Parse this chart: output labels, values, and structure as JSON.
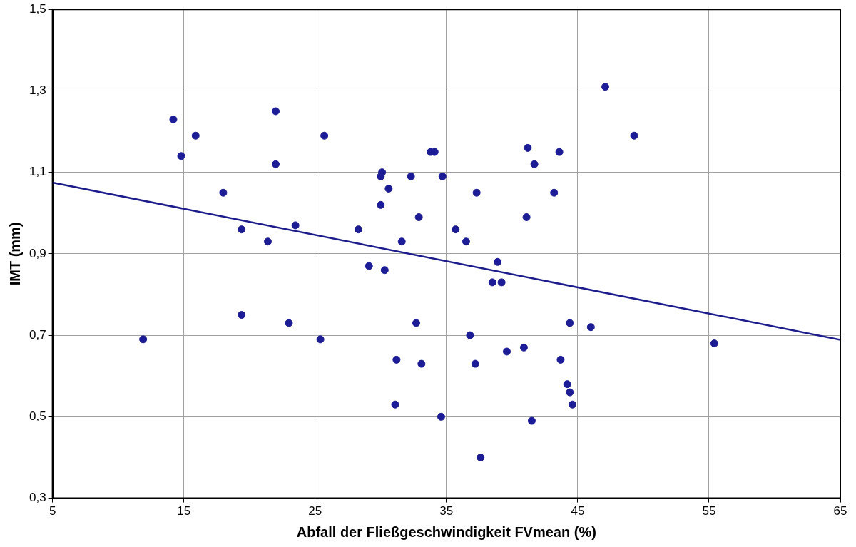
{
  "chart_data": {
    "type": "scatter",
    "xlabel": "Abfall der Fließgeschwindigkeit FVmean (%)",
    "ylabel": "IMT (mm)",
    "xlim": [
      5,
      65
    ],
    "xticks": [
      5,
      15,
      25,
      35,
      45,
      55,
      65
    ],
    "ylim": [
      0.3,
      1.5
    ],
    "yticks": [
      {
        "value": 0.3,
        "label": "0,3"
      },
      {
        "value": 0.5,
        "label": "0,5"
      },
      {
        "value": 0.7,
        "label": "0,7"
      },
      {
        "value": 0.9,
        "label": "0,9"
      },
      {
        "value": 1.1,
        "label": "1,1"
      },
      {
        "value": 1.3,
        "label": "1,3"
      },
      {
        "value": 1.5,
        "label": "1,5"
      }
    ],
    "grid": true,
    "legend": false,
    "marker": "circle",
    "series": [
      {
        "color": "#1c1c96",
        "x": [
          11.9,
          14.2,
          14.8,
          15.9,
          18.0,
          19.4,
          19.4,
          22.0,
          22.0,
          21.4,
          23.0,
          23.5,
          25.4,
          25.7,
          28.3,
          29.1,
          30.1,
          30.0,
          30.0,
          30.3,
          30.6,
          32.3,
          32.9,
          31.6,
          33.8,
          34.1,
          34.7,
          35.7,
          36.5,
          37.3,
          38.9,
          38.5,
          39.2,
          32.7,
          31.2,
          33.1,
          31.1,
          34.6,
          36.8,
          37.2,
          39.6,
          40.9,
          37.6,
          41.5,
          41.2,
          43.6,
          41.7,
          43.2,
          41.1,
          44.4,
          46.0,
          43.7,
          44.2,
          44.4,
          44.6,
          47.1,
          49.3,
          55.4
        ],
        "values": [
          0.69,
          1.23,
          1.14,
          1.19,
          1.05,
          0.96,
          0.75,
          1.25,
          1.12,
          0.93,
          0.73,
          0.97,
          0.69,
          1.19,
          0.96,
          0.87,
          1.1,
          1.09,
          1.02,
          0.86,
          1.06,
          1.09,
          0.99,
          0.93,
          1.15,
          1.15,
          1.09,
          0.96,
          0.93,
          1.05,
          0.88,
          0.83,
          0.83,
          0.73,
          0.64,
          0.63,
          0.53,
          0.5,
          0.7,
          0.63,
          0.66,
          0.67,
          0.4,
          0.49,
          1.16,
          1.15,
          1.12,
          1.05,
          0.99,
          0.73,
          0.72,
          0.64,
          0.58,
          0.56,
          0.53,
          1.31,
          1.19,
          0.68
        ]
      },
      {
        "type": "line",
        "color": "#1c1c8c",
        "line_style": "solid",
        "marker": "none",
        "x": [
          5,
          65
        ],
        "values": [
          1.075,
          0.689
        ]
      }
    ]
  }
}
